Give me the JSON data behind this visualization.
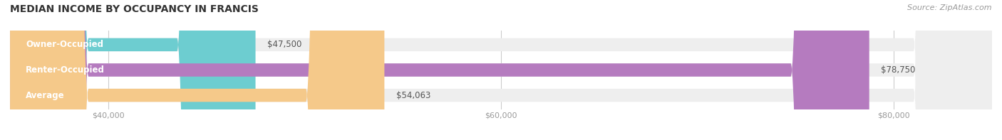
{
  "title": "MEDIAN INCOME BY OCCUPANCY IN FRANCIS",
  "source": "Source: ZipAtlas.com",
  "categories": [
    "Owner-Occupied",
    "Renter-Occupied",
    "Average"
  ],
  "values": [
    47500,
    78750,
    54063
  ],
  "bar_colors": [
    "#6dcdd0",
    "#b57bbf",
    "#f5c98a"
  ],
  "bar_bg_color": "#eeeeee",
  "value_labels": [
    "$47,500",
    "$78,750",
    "$54,063"
  ],
  "xlim_min": 35000,
  "xlim_max": 85000,
  "xticks": [
    40000,
    60000,
    80000
  ],
  "xtick_labels": [
    "$40,000",
    "$60,000",
    "$80,000"
  ],
  "title_fontsize": 10,
  "source_fontsize": 8,
  "label_fontsize": 8.5,
  "value_fontsize": 8.5,
  "bar_height": 0.52,
  "background_color": "#ffffff"
}
